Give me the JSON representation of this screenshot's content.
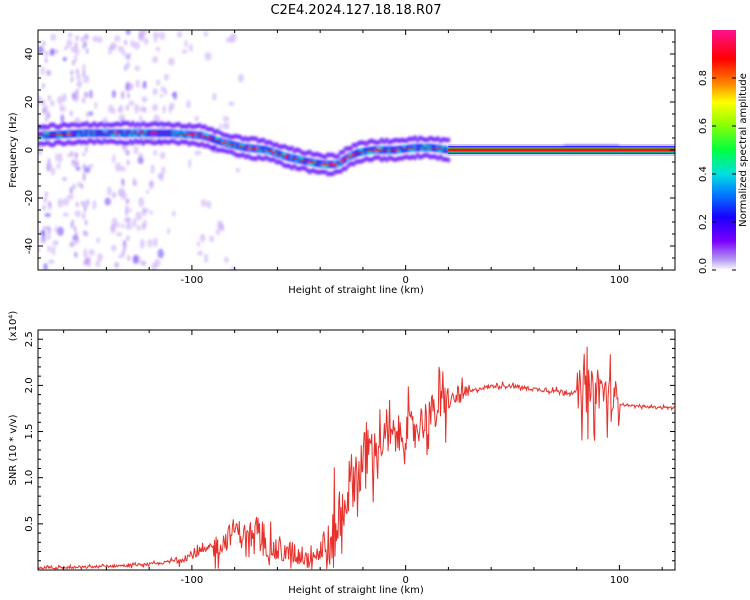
{
  "title": "C2E4.2024.127.18.18.R07",
  "colorbar": {
    "label": "Normalized spectral amplitude",
    "range": [
      0,
      1
    ],
    "ticks": [
      "0.0",
      "0.2",
      "0.4",
      "0.6",
      "0.8"
    ],
    "tick_values": [
      0,
      0.2,
      0.4,
      0.6,
      0.8
    ]
  },
  "chart_data": [
    {
      "type": "heatmap",
      "title": "",
      "xlabel": "Height of straight line (km)",
      "ylabel": "Frequency (Hz)",
      "xlim": [
        -172,
        126
      ],
      "ylim": [
        -50,
        50
      ],
      "xticks": [
        -100,
        0,
        100
      ],
      "xtick_labels": [
        "-100",
        "0",
        "100"
      ],
      "yticks": [
        -40,
        -20,
        0,
        20,
        40
      ],
      "ytick_labels": [
        "-40",
        "-20",
        "0",
        "20",
        "40"
      ],
      "ridge": {
        "x": [
          -172,
          -150,
          -130,
          -110,
          -95,
          -85,
          -75,
          -65,
          -55,
          -45,
          -38,
          -32,
          -27,
          -22,
          -15,
          -5,
          5,
          12,
          20,
          126
        ],
        "y": [
          6,
          7,
          7,
          7,
          6,
          3,
          1,
          0,
          -3,
          -5,
          -6,
          -6,
          -3,
          -1,
          0,
          0,
          1,
          1,
          0,
          0
        ]
      },
      "colorscale": "rainbow (purple-blue-cyan-green-yellow-red-magenta)"
    },
    {
      "type": "line",
      "title": "",
      "xlabel": "Height of straight line (km)",
      "ylabel": "SNR (10 * v/v)",
      "y_scale_label": "(x10⁴)",
      "xlim": [
        -172,
        126
      ],
      "ylim": [
        0,
        2.6
      ],
      "xticks": [
        -100,
        0,
        100
      ],
      "xtick_labels": [
        "-100",
        "0",
        "100"
      ],
      "yticks": [
        0.5,
        1.0,
        1.5,
        2.0,
        2.5
      ],
      "ytick_labels": [
        "0.5",
        "1.0",
        "1.5",
        "2.0",
        "2.5"
      ],
      "series": [
        {
          "color": "#e8302a",
          "x": [
            -172,
            -150,
            -130,
            -115,
            -105,
            -95,
            -85,
            -80,
            -75,
            -68,
            -60,
            -52,
            -45,
            -40,
            -35,
            -30,
            -27,
            -22,
            -18,
            -15,
            -10,
            -5,
            0,
            5,
            10,
            15,
            20,
            25,
            30,
            35,
            40,
            45,
            50,
            60,
            70,
            80,
            85,
            88,
            90,
            93,
            96,
            100,
            110,
            126
          ],
          "y": [
            0.02,
            0.03,
            0.05,
            0.07,
            0.12,
            0.2,
            0.3,
            0.45,
            0.38,
            0.3,
            0.2,
            0.18,
            0.15,
            0.2,
            0.3,
            0.6,
            0.9,
            1.1,
            1.25,
            1.3,
            1.4,
            1.45,
            1.5,
            1.55,
            1.65,
            1.75,
            1.82,
            1.88,
            1.93,
            1.97,
            1.99,
            2.0,
            1.99,
            1.96,
            1.94,
            1.92,
            1.95,
            1.9,
            2.0,
            1.9,
            1.85,
            1.8,
            1.77,
            1.76
          ]
        }
      ]
    }
  ]
}
